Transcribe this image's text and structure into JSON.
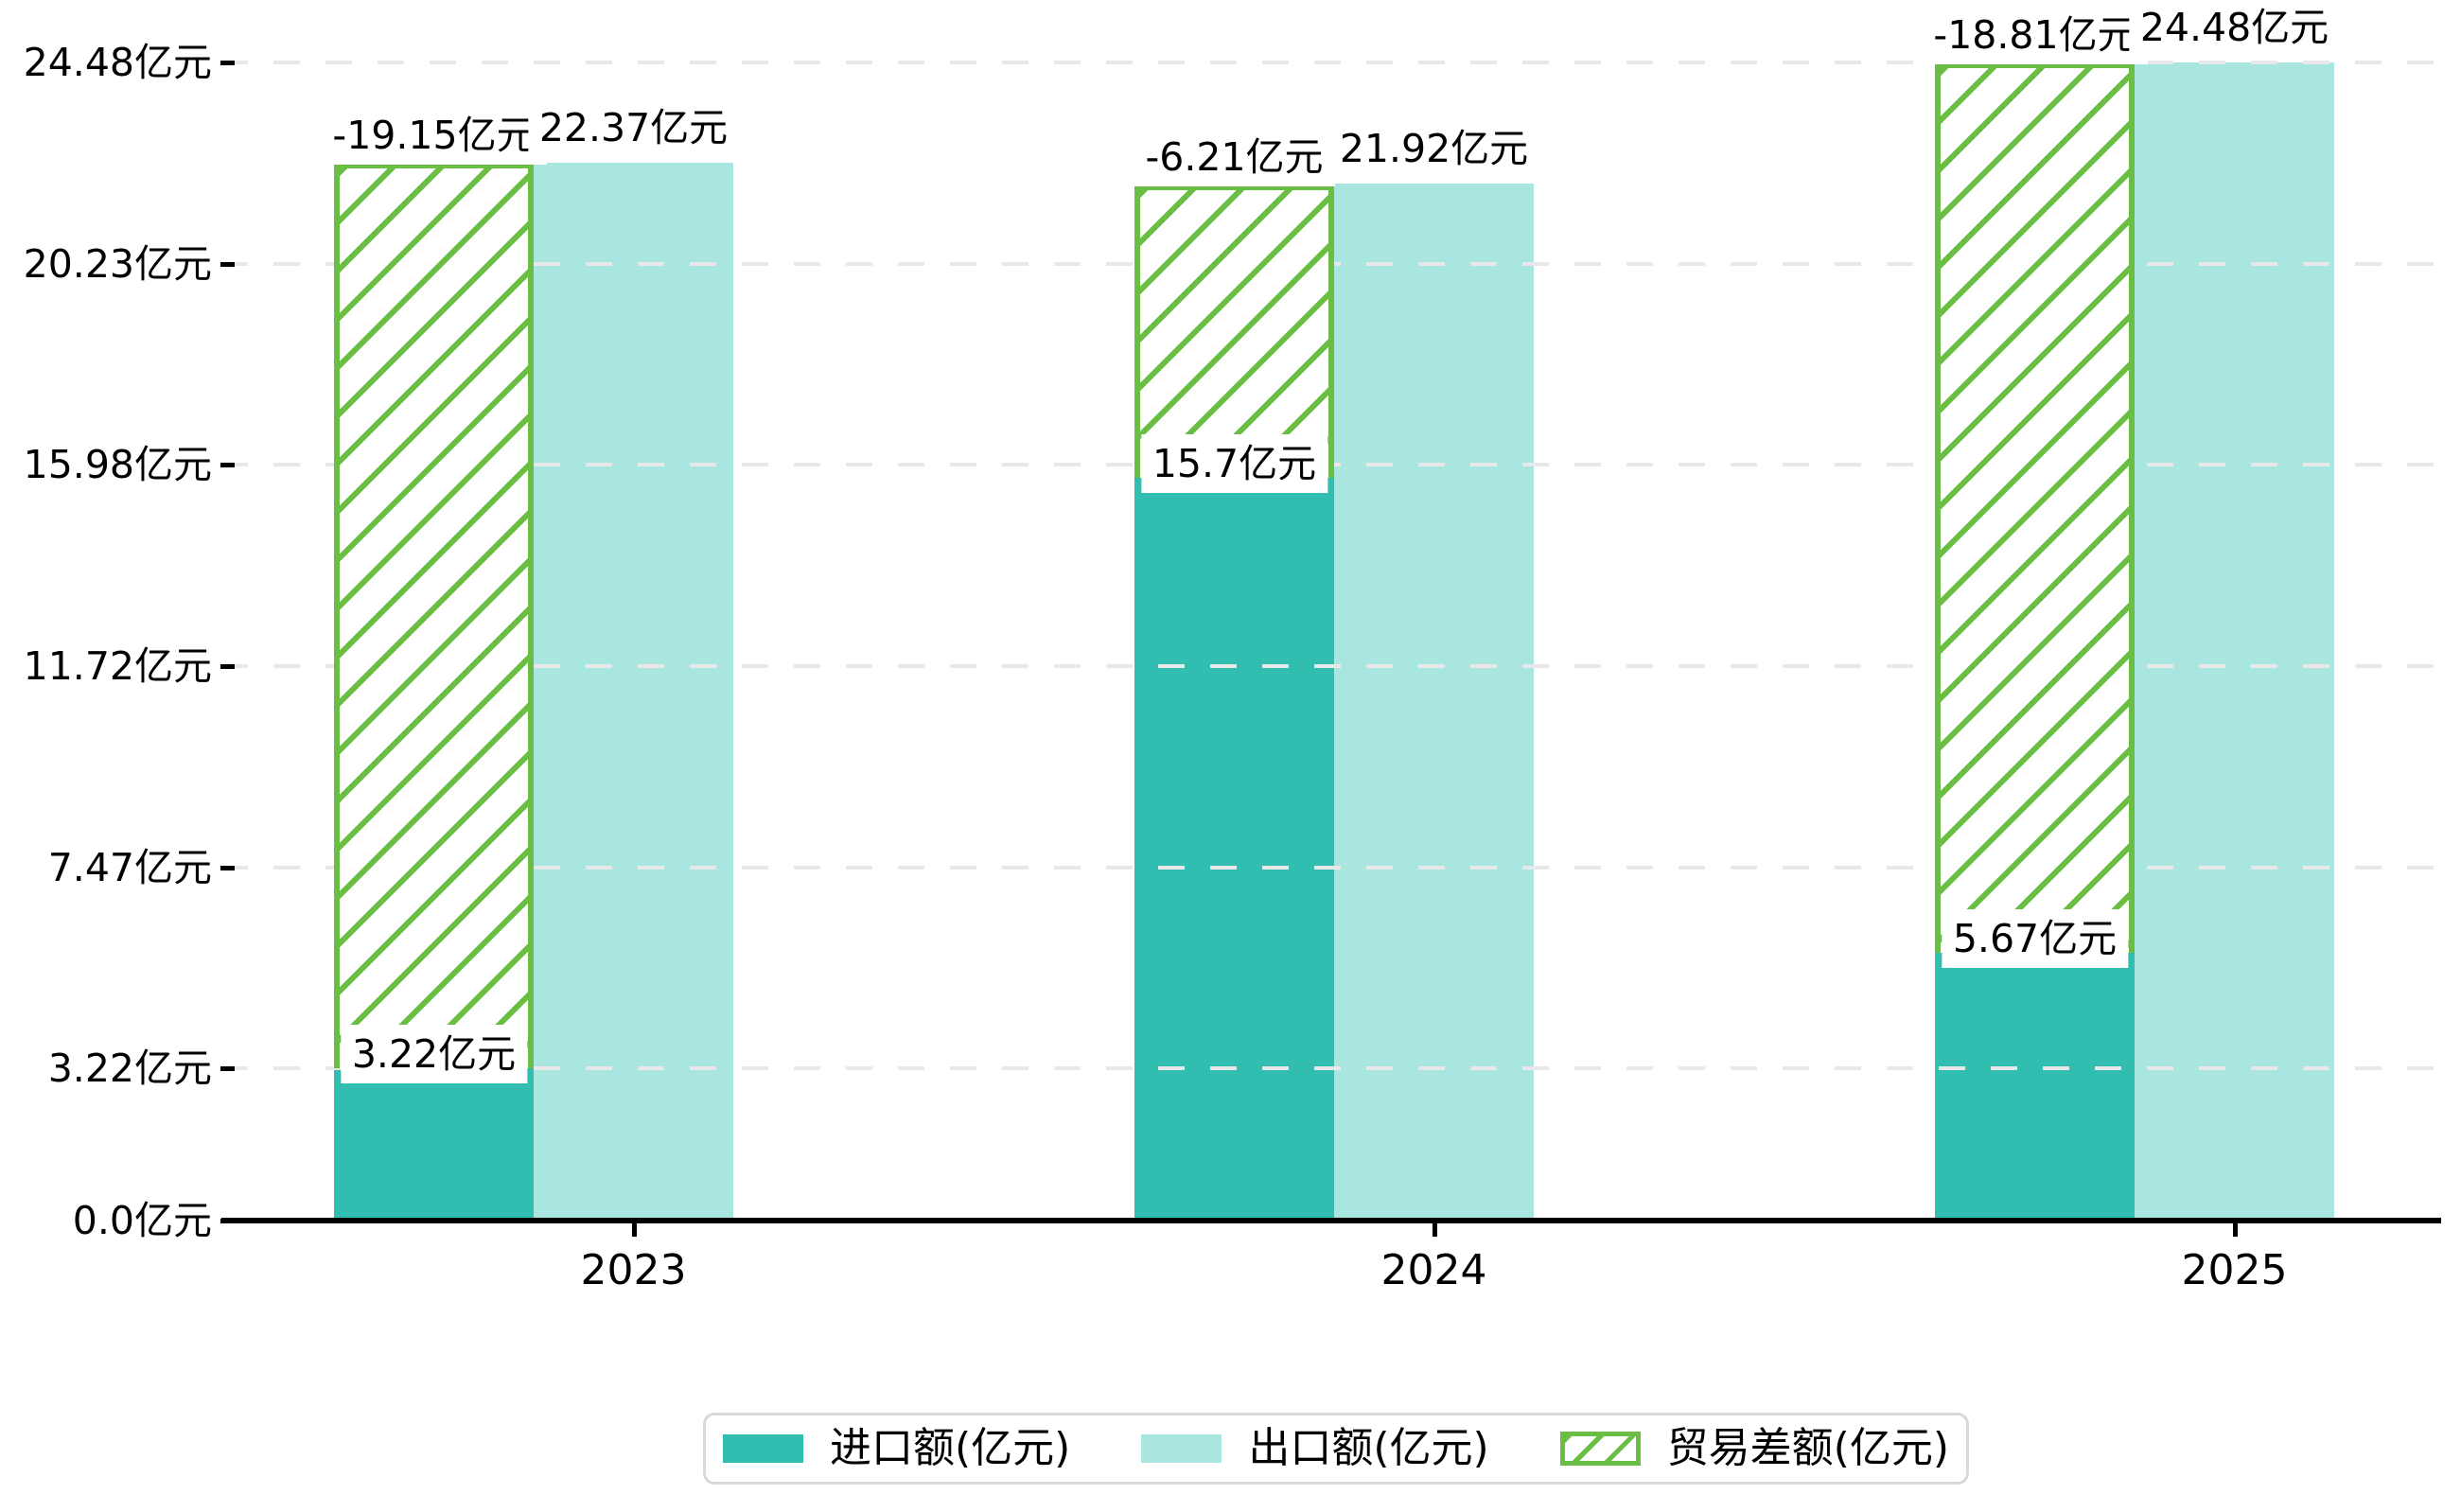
{
  "chart_data": {
    "type": "bar",
    "title": "",
    "xlabel": "",
    "ylabel": "",
    "categories": [
      "2023",
      "2024",
      "2025"
    ],
    "series": [
      {
        "name": "进口额(亿元)",
        "style": "solid",
        "color": "#31beb0",
        "values": [
          3.22,
          15.7,
          5.67
        ]
      },
      {
        "name": "出口额(亿元)",
        "style": "solid",
        "color": "#a9e6df",
        "values": [
          22.37,
          21.92,
          24.48
        ]
      },
      {
        "name": "贸易差额(亿元)",
        "style": "hatched",
        "color": "#6bbe44",
        "values": [
          -19.15,
          -6.21,
          -18.81
        ],
        "stacked_on_series": 0
      }
    ],
    "value_labels": {
      "import": [
        "3.22亿元",
        "15.7亿元",
        "5.67亿元"
      ],
      "export": [
        "22.37亿元",
        "21.92亿元",
        "24.48亿元"
      ],
      "trade_balance": [
        "-19.15亿元",
        "-6.21亿元",
        "-18.81亿元"
      ]
    },
    "y_axis": {
      "tick_labels": [
        "0.0亿元",
        "3.22亿元",
        "7.47亿元",
        "11.72亿元",
        "15.98亿元",
        "20.23亿元",
        "24.48亿元"
      ],
      "tick_values": [
        0,
        3.22,
        7.47,
        11.72,
        15.98,
        20.23,
        24.48
      ],
      "range": [
        0,
        24.48
      ]
    },
    "grid": "horizontal-dashed",
    "legend_position": "bottom"
  },
  "colors": {
    "import_bar": "#31beb0",
    "export_bar": "#a9e6df",
    "trade_hatch_green": "#6bbe44",
    "axis": "#000000",
    "gridline": "#e8e8e8",
    "legend_border": "#d9d9d9",
    "background": "#ffffff"
  }
}
